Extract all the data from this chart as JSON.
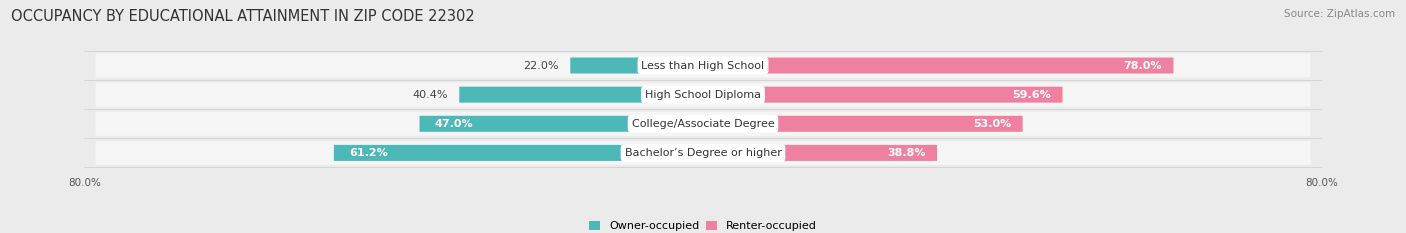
{
  "title": "OCCUPANCY BY EDUCATIONAL ATTAINMENT IN ZIP CODE 22302",
  "source": "Source: ZipAtlas.com",
  "categories": [
    "Less than High School",
    "High School Diploma",
    "College/Associate Degree",
    "Bachelor’s Degree or higher"
  ],
  "owner_pct": [
    22.0,
    40.4,
    47.0,
    61.2
  ],
  "renter_pct": [
    78.0,
    59.6,
    53.0,
    38.8
  ],
  "owner_color": "#4db8b8",
  "renter_color": "#f080a0",
  "bar_height": 0.55,
  "bg_color": "#ebebeb",
  "row_bg_color": "#f5f5f5",
  "title_fontsize": 10.5,
  "source_fontsize": 7.5,
  "label_fontsize": 8,
  "pct_fontsize": 8,
  "axis_label_left": "80.0%",
  "axis_label_right": "80.0%"
}
